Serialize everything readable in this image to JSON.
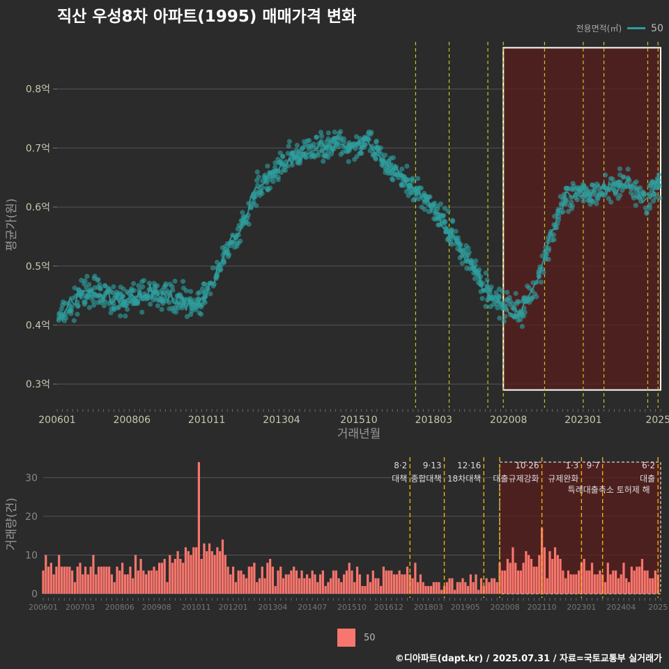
{
  "header": {
    "title": "직산 우성8차 아파트(1995) 매매가격 변화",
    "credit": "©디아파트(dapt.kr) / 2025.07.31 / 자료=국토교통부 실거래가"
  },
  "legend": {
    "area_title": "전용면적(㎡)",
    "area_value": "50",
    "volume_value": "50"
  },
  "colors": {
    "background": "#2b2b2b",
    "price_series": "#2e9e9e",
    "volume_bars": "#f8766d",
    "policy_line_top": "#c8c81e",
    "policy_line_bottom": "#f0b400",
    "highlight_fill": "#5a1e1e"
  },
  "chart_data": [
    {
      "type": "scatter",
      "ylabel": "평균가(원)",
      "xlabel": "거래년월",
      "x_range": [
        "200601",
        "202507"
      ],
      "ylim": [
        0.26,
        0.88
      ],
      "y_ticks": [
        0.3,
        0.4,
        0.5,
        0.6,
        0.7,
        0.8
      ],
      "y_tick_labels": [
        "0.3억",
        "0.4억",
        "0.5억",
        "0.6억",
        "0.7억",
        "0.8억"
      ],
      "x_tick_labels": [
        "200601",
        "200806",
        "201011",
        "201304",
        "201510",
        "201803",
        "202008",
        "202301",
        "2025"
      ],
      "x_tick_months": [
        "2006-01",
        "2008-06",
        "2010-11",
        "2013-04",
        "2015-10",
        "2018-03",
        "2020-08",
        "2023-01",
        "2025-06"
      ],
      "grid": true,
      "series": [
        {
          "name": "50",
          "trend": [
            [
              "2006-01",
              0.41
            ],
            [
              "2007-01",
              0.46
            ],
            [
              "2008-01",
              0.44
            ],
            [
              "2009-01",
              0.455
            ],
            [
              "2010-01",
              0.445
            ],
            [
              "2010-06",
              0.43
            ],
            [
              "2011-01",
              0.47
            ],
            [
              "2011-06",
              0.52
            ],
            [
              "2012-01",
              0.57
            ],
            [
              "2012-06",
              0.63
            ],
            [
              "2013-01",
              0.66
            ],
            [
              "2013-06",
              0.68
            ],
            [
              "2014-01",
              0.69
            ],
            [
              "2014-06",
              0.7
            ],
            [
              "2015-01",
              0.71
            ],
            [
              "2015-06",
              0.7
            ],
            [
              "2016-01",
              0.71
            ],
            [
              "2016-06",
              0.68
            ],
            [
              "2017-01",
              0.66
            ],
            [
              "2017-06",
              0.63
            ],
            [
              "2018-01",
              0.61
            ],
            [
              "2018-06",
              0.58
            ],
            [
              "2018-12",
              0.54
            ],
            [
              "2019-06",
              0.5
            ],
            [
              "2019-12",
              0.45
            ],
            [
              "2020-06",
              0.43
            ],
            [
              "2020-12",
              0.42
            ],
            [
              "2021-06",
              0.46
            ],
            [
              "2021-12",
              0.55
            ],
            [
              "2022-06",
              0.62
            ],
            [
              "2023-01",
              0.62
            ],
            [
              "2023-06",
              0.63
            ],
            [
              "2024-01",
              0.63
            ],
            [
              "2024-06",
              0.64
            ],
            [
              "2025-01",
              0.61
            ],
            [
              "2025-06",
              0.64
            ]
          ]
        }
      ],
      "highlight_range": [
        "2020-06",
        "2025-07"
      ],
      "highlight_ylim": [
        0.29,
        0.87
      ],
      "policy_months": [
        "2017-08",
        "2018-09",
        "2019-12",
        "2020-06",
        "2021-10",
        "2023-01",
        "2023-09",
        "2025-02",
        "2025-06"
      ]
    },
    {
      "type": "bar",
      "ylabel": "거래량(건)",
      "ylim": [
        0,
        36
      ],
      "y_ticks": [
        0,
        10,
        20,
        30
      ],
      "y_tick_labels": [
        "0",
        "10",
        "20",
        "30"
      ],
      "x_tick_labels": [
        "200601",
        "200703",
        "200806",
        "200908",
        "201011",
        "201201",
        "201304",
        "201407",
        "201510",
        "201612",
        "201803",
        "201905",
        "202008",
        "202110",
        "202301",
        "202404",
        "2025"
      ],
      "x_tick_months": [
        "2006-01",
        "2007-03",
        "2008-06",
        "2009-08",
        "2010-11",
        "2012-01",
        "2013-04",
        "2014-07",
        "2015-10",
        "2016-12",
        "2018-03",
        "2019-05",
        "2020-08",
        "2021-10",
        "2023-01",
        "2024-04",
        "2025-06"
      ],
      "highlight_range": [
        "2020-06",
        "2025-07"
      ],
      "highlight_ylim": [
        0,
        34
      ],
      "peak": {
        "month": "2010-12",
        "value": 34
      },
      "policy_annotations": [
        {
          "month": "2017-08",
          "date": "8·2",
          "label": "대책",
          "label2": ""
        },
        {
          "month": "2018-09",
          "date": "9·13",
          "label": "종합대책",
          "label2": ""
        },
        {
          "month": "2019-12",
          "date": "12·16",
          "label": "18차대책",
          "label2": ""
        },
        {
          "month": "2020-06",
          "date": "",
          "label": "",
          "label2": ""
        },
        {
          "month": "2021-10",
          "date": "10·26",
          "label": "대출규제강화",
          "label2": ""
        },
        {
          "month": "2023-01",
          "date": "1·3",
          "label": "규제완화",
          "label2": ""
        },
        {
          "month": "2023-09",
          "date": "9·7",
          "label": "",
          "label2": "특례대출축소 토허제 해"
        },
        {
          "month": "2025-06",
          "date": "6·2",
          "label": "대출",
          "label2": ""
        }
      ]
    }
  ]
}
